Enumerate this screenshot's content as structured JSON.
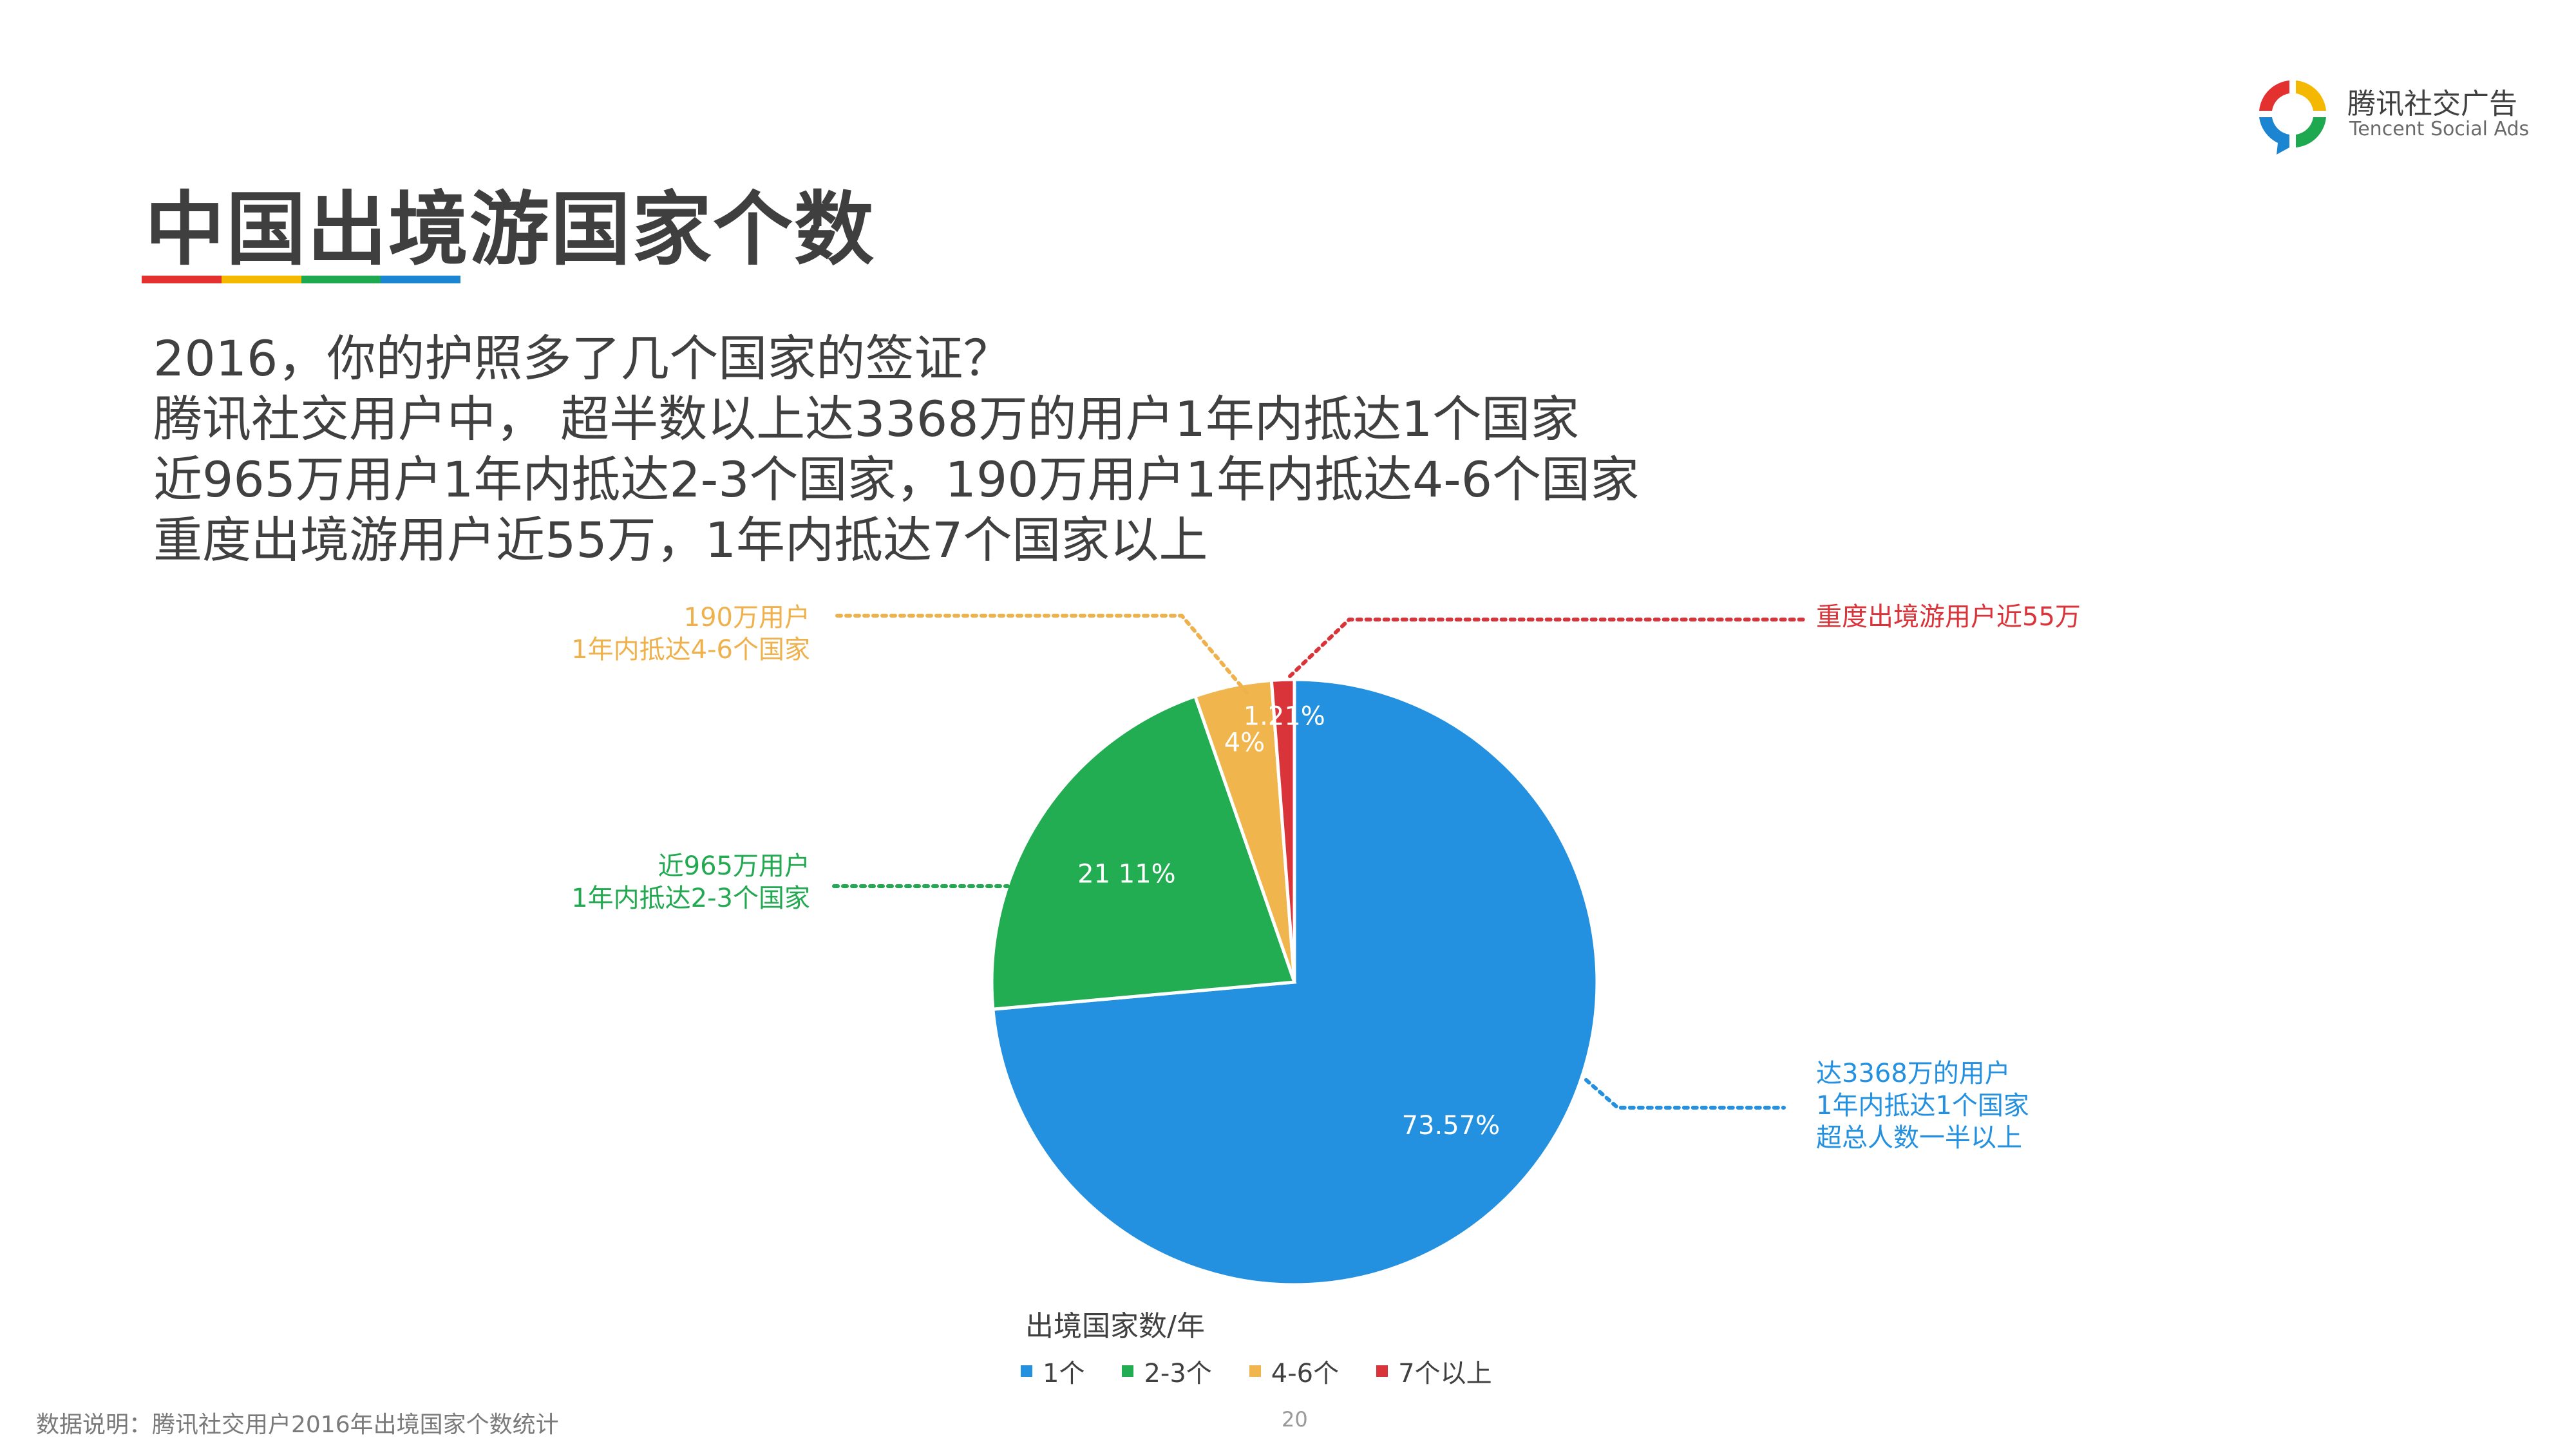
{
  "brand": {
    "name": "腾讯社交广告",
    "sub": "Tencent Social Ads",
    "logo_colors": [
      "#e2312f",
      "#f5b800",
      "#1ea951",
      "#1b85d1"
    ]
  },
  "page": {
    "title": "中国出境游国家个数",
    "title_bar_colors": [
      "#e2312f",
      "#f5b800",
      "#1ea951",
      "#1b85d1"
    ],
    "intro_lines": [
      "2016，你的护照多了几个国家的签证？",
      "腾讯社交用户中， 超半数以上达3368万的用户1年内抵达1个国家",
      "近965万用户1年内抵达2-3个国家，190万用户1年内抵达4-6个国家",
      "重度出境游用户近55万，1年内抵达7个国家以上"
    ],
    "footnote": "数据说明：腾讯社交用户2016年出境国家个数统计",
    "page_number": "20"
  },
  "chart_data": {
    "type": "pie",
    "legend_title": "出境国家数/年",
    "legend_position": "bottom",
    "slices": [
      {
        "name": "1个",
        "value": 73.57,
        "label": "73.57%",
        "color": "#2390e0"
      },
      {
        "name": "2-3个",
        "value": 21.11,
        "label": "21 11%",
        "color": "#22ad53"
      },
      {
        "name": "4-6个",
        "value": 4.11,
        "label": "4%",
        "color": "#f1b54e"
      },
      {
        "name": "7个以上",
        "value": 1.21,
        "label": "1.21%",
        "color": "#d9343a"
      }
    ],
    "callouts": {
      "s1": [
        "达3368万的用户",
        "1年内抵达1个国家",
        "超总人数一半以上"
      ],
      "s2": [
        "近965万用户",
        "1年内抵达2-3个国家"
      ],
      "s3": [
        "190万用户",
        "1年内抵达4-6个国家"
      ],
      "s4": [
        "重度出境游用户近55万"
      ]
    }
  }
}
